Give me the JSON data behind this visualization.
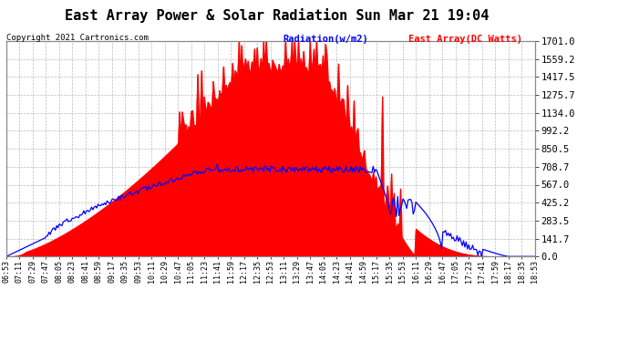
{
  "title": "East Array Power & Solar Radiation Sun Mar 21 19:04",
  "copyright": "Copyright 2021 Cartronics.com",
  "legend_radiation": "Radiation(w/m2)",
  "legend_array": "East Array(DC Watts)",
  "y_ticks": [
    0.0,
    141.7,
    283.5,
    425.2,
    567.0,
    708.7,
    850.5,
    992.2,
    1134.0,
    1275.7,
    1417.5,
    1559.2,
    1701.0
  ],
  "y_max": 1701.0,
  "y_min": 0.0,
  "x_labels": [
    "06:53",
    "07:11",
    "07:29",
    "07:47",
    "08:05",
    "08:23",
    "08:41",
    "08:59",
    "09:17",
    "09:35",
    "09:53",
    "10:11",
    "10:29",
    "10:47",
    "11:05",
    "11:23",
    "11:41",
    "11:59",
    "12:17",
    "12:35",
    "12:53",
    "13:11",
    "13:29",
    "13:47",
    "14:05",
    "14:23",
    "14:41",
    "14:59",
    "15:17",
    "15:35",
    "15:53",
    "16:11",
    "16:29",
    "16:47",
    "17:05",
    "17:23",
    "17:41",
    "17:59",
    "18:17",
    "18:35",
    "18:53"
  ],
  "plot_bg_color": "#ffffff",
  "grid_color": "#aaaaaa",
  "red_fill_color": "#ff0000",
  "blue_line_color": "#0000ff",
  "fig_bg_color": "#ffffff",
  "title_fontsize": 11,
  "copyright_fontsize": 6.5,
  "legend_fontsize": 7.5,
  "tick_fontsize": 6,
  "ytick_fontsize": 7.5
}
